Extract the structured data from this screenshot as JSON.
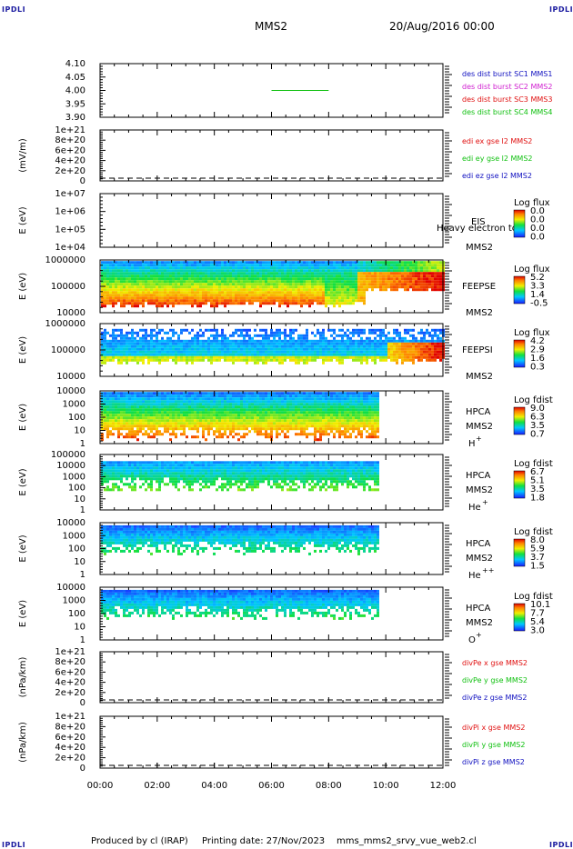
{
  "corner_label": "IPDLI",
  "header": {
    "spacecraft": "MMS2",
    "date": "20/Aug/2016 00:00"
  },
  "footer": {
    "produced": "Produced by cl (IRAP)",
    "printing": "Printing date: 27/Nov/2023",
    "file": "mms_mms2_srvy_vue_web2.cl"
  },
  "colors": {
    "red": "#e01010",
    "green": "#10c010",
    "blue": "#1010c0",
    "magenta": "#d020d0"
  },
  "chart_data": {
    "type": "heatmap",
    "x_ticks": [
      "00:00",
      "02:00",
      "04:00",
      "06:00",
      "08:00",
      "10:00",
      "12:00"
    ],
    "xlim_hours": [
      0,
      12
    ],
    "panels": [
      {
        "id": "des-dist",
        "type": "line",
        "ylim": [
          3.9,
          4.1
        ],
        "yticks": [
          "4.10",
          "4.05",
          "4.00",
          "3.95",
          "3.90"
        ],
        "ylabel": "",
        "legend": [
          {
            "text": "des dist burst SC1 MMS1",
            "color": "#1010c0"
          },
          {
            "text": "des dist burst SC2 MMS2",
            "color": "#d020d0"
          },
          {
            "text": "des dist burst SC3 MMS3",
            "color": "#e01010"
          },
          {
            "text": "des dist burst SC4 MMS4",
            "color": "#10c010"
          }
        ],
        "series": [
          {
            "name": "des dist burst SC4 MMS4",
            "x": [
              6.0,
              8.0
            ],
            "y": [
              4.0,
              4.0
            ],
            "color": "#10c010"
          }
        ]
      },
      {
        "id": "edi",
        "type": "line",
        "ylim": [
          0,
          1e+21
        ],
        "yticks": [
          "1e+21",
          "8e+20",
          "6e+20",
          "4e+20",
          "2e+20",
          "0"
        ],
        "ylabel": "(mV/m)",
        "legend": [
          {
            "text": "edi ex gse l2 MMS2",
            "color": "#e01010"
          },
          {
            "text": "edi ey gse l2 MMS2",
            "color": "#10c010"
          },
          {
            "text": "edi ez gse l2 MMS2",
            "color": "#1010c0"
          }
        ]
      },
      {
        "id": "eis",
        "type": "heatmap",
        "ylog": true,
        "yticks": [
          "1e+07",
          "1e+06",
          "1e+05",
          "1e+04"
        ],
        "ylabel": "E (eV)",
        "instrument": [
          "EIS",
          "MMS2"
        ],
        "overlay_text": "Heavy electron to",
        "colorbar": {
          "title": "Log flux",
          "values": [
            "0.0",
            "0.0",
            "0.0",
            "0.0"
          ]
        }
      },
      {
        "id": "feepse",
        "type": "heatmap",
        "ylog": true,
        "yticks": [
          "1000000",
          "100000",
          "10000"
        ],
        "ylabel": "E (eV)",
        "instrument": [
          "FEEPSE",
          "MMS2"
        ],
        "colorbar": {
          "title": "Log flux",
          "values": [
            "5.2",
            "3.3",
            "1.4",
            "-0.5"
          ]
        }
      },
      {
        "id": "feepsi",
        "type": "heatmap",
        "ylog": true,
        "yticks": [
          "1000000",
          "100000",
          "10000"
        ],
        "ylabel": "E (eV)",
        "instrument": [
          "FEEPSI",
          "MMS2"
        ],
        "colorbar": {
          "title": "Log flux",
          "values": [
            "4.2",
            "2.9",
            "1.6",
            "0.3"
          ]
        }
      },
      {
        "id": "hpca-h",
        "type": "heatmap",
        "ylog": true,
        "yticks": [
          "10000",
          "1000",
          "100",
          "10",
          "1"
        ],
        "ylabel": "E (eV)",
        "instrument": [
          "HPCA",
          "MMS2"
        ],
        "species": "H",
        "species_sup": "+",
        "colorbar": {
          "title": "Log fdist",
          "values": [
            "9.0",
            "6.3",
            "3.5",
            "0.7"
          ]
        }
      },
      {
        "id": "hpca-he",
        "type": "heatmap",
        "ylog": true,
        "yticks": [
          "100000",
          "10000",
          "1000",
          "100",
          "10",
          "1"
        ],
        "ylabel": "E (eV)",
        "instrument": [
          "HPCA",
          "MMS2"
        ],
        "species": "He",
        "species_sup": "+",
        "colorbar": {
          "title": "Log fdist",
          "values": [
            "6.7",
            "5.1",
            "3.5",
            "1.8"
          ]
        }
      },
      {
        "id": "hpca-hepp",
        "type": "heatmap",
        "ylog": true,
        "yticks": [
          "10000",
          "1000",
          "100",
          "10",
          "1"
        ],
        "ylabel": "E (eV)",
        "instrument": [
          "HPCA",
          "MMS2"
        ],
        "species": "He",
        "species_sup": "++",
        "colorbar": {
          "title": "Log fdist",
          "values": [
            "8.0",
            "5.9",
            "3.7",
            "1.5"
          ]
        }
      },
      {
        "id": "hpca-o",
        "type": "heatmap",
        "ylog": true,
        "yticks": [
          "10000",
          "1000",
          "100",
          "10",
          "1"
        ],
        "ylabel": "E (eV)",
        "instrument": [
          "HPCA",
          "MMS2"
        ],
        "species": "O",
        "species_sup": "+",
        "colorbar": {
          "title": "Log fdist",
          "values": [
            "10.1",
            "7.7",
            "5.4",
            "3.0"
          ]
        }
      },
      {
        "id": "divpe",
        "type": "line",
        "ylim": [
          0,
          1e+21
        ],
        "yticks": [
          "1e+21",
          "8e+20",
          "6e+20",
          "4e+20",
          "2e+20",
          "0"
        ],
        "ylabel": "(nPa/km)",
        "legend": [
          {
            "text": "divPe x gse MMS2",
            "color": "#e01010"
          },
          {
            "text": "divPe y gse MMS2",
            "color": "#10c010"
          },
          {
            "text": "divPe z gse MMS2",
            "color": "#1010c0"
          }
        ]
      },
      {
        "id": "divpi",
        "type": "line",
        "ylim": [
          0,
          1e+21
        ],
        "yticks": [
          "1e+21",
          "8e+20",
          "6e+20",
          "4e+20",
          "2e+20",
          "0"
        ],
        "ylabel": "(nPa/km)",
        "legend": [
          {
            "text": "divPi x gse MMS2",
            "color": "#e01010"
          },
          {
            "text": "divPi y gse MMS2",
            "color": "#10c010"
          },
          {
            "text": "divPi z gse MMS2",
            "color": "#1010c0"
          }
        ]
      }
    ]
  }
}
